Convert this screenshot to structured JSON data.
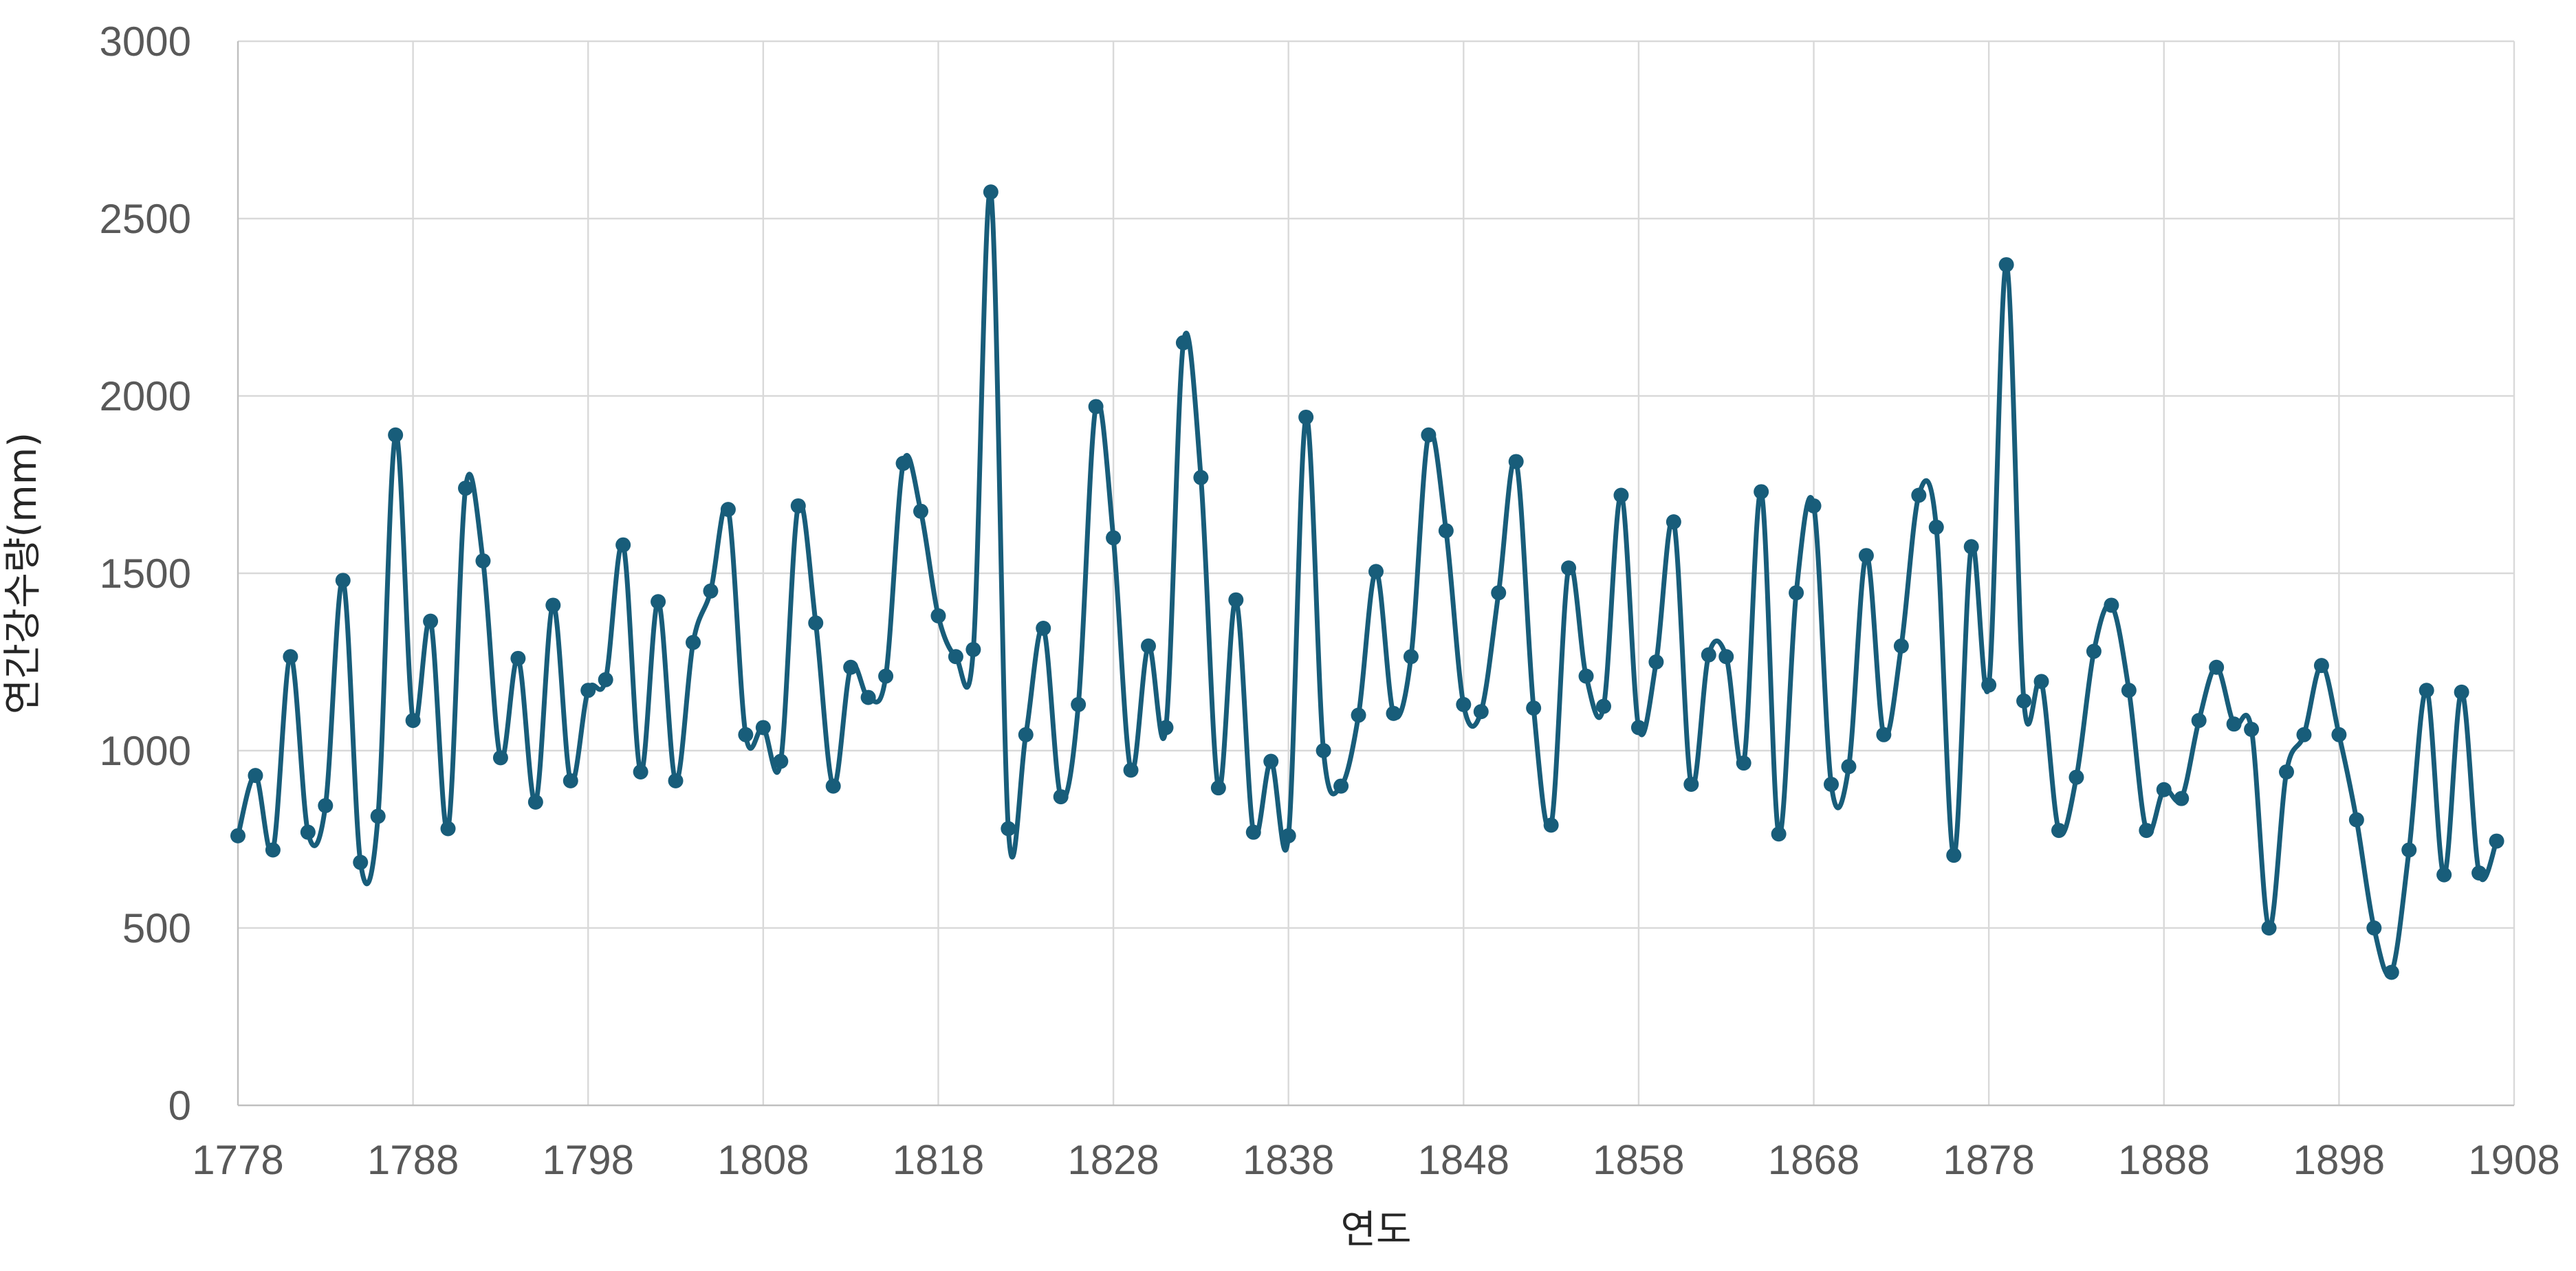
{
  "chart_data": {
    "type": "line",
    "title": "",
    "xlabel": "연도",
    "ylabel": "연간강수량(mm)",
    "xlim": [
      1778,
      1908
    ],
    "ylim": [
      0,
      3000
    ],
    "x_ticks": [
      1778,
      1788,
      1798,
      1808,
      1818,
      1828,
      1838,
      1848,
      1858,
      1868,
      1878,
      1888,
      1898,
      1908
    ],
    "y_ticks": [
      0,
      500,
      1000,
      1500,
      2000,
      2500,
      3000
    ],
    "grid": true,
    "legend": "none",
    "smooth": true,
    "series_color": "#185d7a",
    "x": [
      1778,
      1779,
      1780,
      1781,
      1782,
      1783,
      1784,
      1785,
      1786,
      1787,
      1788,
      1789,
      1790,
      1791,
      1792,
      1793,
      1794,
      1795,
      1796,
      1797,
      1798,
      1799,
      1800,
      1801,
      1802,
      1803,
      1804,
      1805,
      1806,
      1807,
      1808,
      1809,
      1810,
      1811,
      1812,
      1813,
      1814,
      1815,
      1816,
      1817,
      1818,
      1819,
      1820,
      1821,
      1822,
      1823,
      1824,
      1825,
      1826,
      1827,
      1828,
      1829,
      1830,
      1831,
      1832,
      1833,
      1834,
      1835,
      1836,
      1837,
      1838,
      1839,
      1840,
      1841,
      1842,
      1843,
      1844,
      1845,
      1846,
      1847,
      1848,
      1849,
      1850,
      1851,
      1852,
      1853,
      1854,
      1855,
      1856,
      1857,
      1858,
      1859,
      1860,
      1861,
      1862,
      1863,
      1864,
      1865,
      1866,
      1867,
      1868,
      1869,
      1870,
      1871,
      1872,
      1873,
      1874,
      1875,
      1876,
      1877,
      1878,
      1879,
      1880,
      1881,
      1882,
      1883,
      1884,
      1885,
      1886,
      1887,
      1888,
      1889,
      1890,
      1891,
      1892,
      1893,
      1894,
      1895,
      1896,
      1897,
      1898,
      1899,
      1900,
      1901,
      1902,
      1903,
      1904,
      1905,
      1906,
      1907
    ],
    "series": [
      {
        "values": [
          760,
          930,
          720,
          1265,
          770,
          845,
          1480,
          685,
          815,
          1890,
          1085,
          1365,
          780,
          1740,
          1535,
          980,
          1260,
          855,
          1410,
          915,
          1170,
          1200,
          1580,
          940,
          1420,
          915,
          1305,
          1450,
          1680,
          1045,
          1065,
          970,
          1690,
          1360,
          900,
          1235,
          1150,
          1210,
          1810,
          1675,
          1380,
          1265,
          1285,
          2575,
          780,
          1045,
          1345,
          870,
          1130,
          1970,
          1600,
          945,
          1295,
          1065,
          2150,
          1770,
          895,
          1425,
          770,
          970,
          760,
          1940,
          1000,
          900,
          1100,
          1505,
          1105,
          1265,
          1890,
          1620,
          1130,
          1110,
          1445,
          1815,
          1120,
          790,
          1515,
          1210,
          1125,
          1720,
          1065,
          1250,
          1645,
          905,
          1270,
          1265,
          965,
          1730,
          765,
          1445,
          1690,
          905,
          955,
          1550,
          1045,
          1295,
          1720,
          1630,
          705,
          1575,
          1185,
          2370,
          1140,
          1195,
          775,
          925,
          1280,
          1410,
          1170,
          775,
          890,
          865,
          1085,
          1235,
          1075,
          1060,
          500,
          940,
          1045,
          1240,
          1045,
          805,
          500,
          375,
          720,
          1170,
          650,
          1165,
          655,
          745
        ]
      }
    ]
  }
}
